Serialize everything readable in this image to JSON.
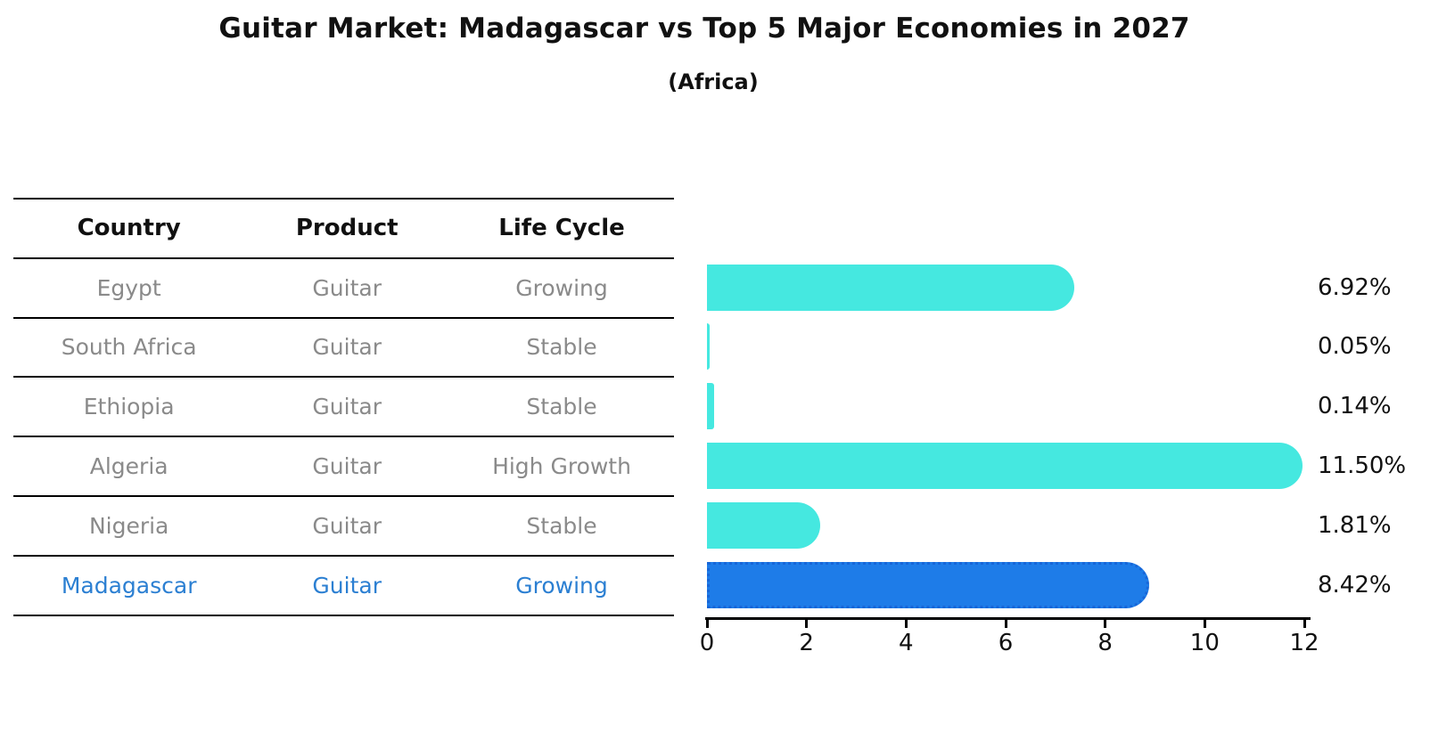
{
  "title": "Guitar Market: Madagascar vs Top 5 Major Economies in 2027",
  "subtitle": "(Africa)",
  "table": {
    "headers": [
      "Country",
      "Product",
      "Life Cycle"
    ],
    "rows": [
      {
        "country": "Egypt",
        "product": "Guitar",
        "life_cycle": "Growing",
        "highlight": false
      },
      {
        "country": "South Africa",
        "product": "Guitar",
        "life_cycle": "Stable",
        "highlight": false
      },
      {
        "country": "Ethiopia",
        "product": "Guitar",
        "life_cycle": "Stable",
        "highlight": false
      },
      {
        "country": "Algeria",
        "product": "Guitar",
        "life_cycle": "High Growth",
        "highlight": false
      },
      {
        "country": "Nigeria",
        "product": "Guitar",
        "life_cycle": "Stable",
        "highlight": false
      },
      {
        "country": "Madagascar",
        "product": "Guitar",
        "life_cycle": "Growing",
        "highlight": true
      }
    ]
  },
  "chart_data": {
    "type": "bar",
    "orientation": "horizontal",
    "title": "Guitar Market: Madagascar vs Top 5 Major Economies in 2027",
    "subtitle": "(Africa)",
    "categories": [
      "Egypt",
      "South Africa",
      "Ethiopia",
      "Algeria",
      "Nigeria",
      "Madagascar"
    ],
    "values": [
      6.92,
      0.05,
      0.14,
      11.5,
      1.81,
      8.42
    ],
    "value_labels": [
      "6.92%",
      "0.05%",
      "0.14%",
      "11.50%",
      "1.81%",
      "8.42%"
    ],
    "xlabel": "",
    "ylabel": "",
    "xlim": [
      0,
      12
    ],
    "x_ticks": [
      "0",
      "2",
      "4",
      "6",
      "8",
      "10",
      "12"
    ],
    "grid": false,
    "legend": false,
    "highlight_index": 5,
    "bar_color": "#45e8e0",
    "highlight_bar_color": "#1e7ce8",
    "highlight_bar_edge_color": "#1766d8",
    "highlight_text_color": "#2b7fd2",
    "row_text_color": "#8a8a8a"
  }
}
